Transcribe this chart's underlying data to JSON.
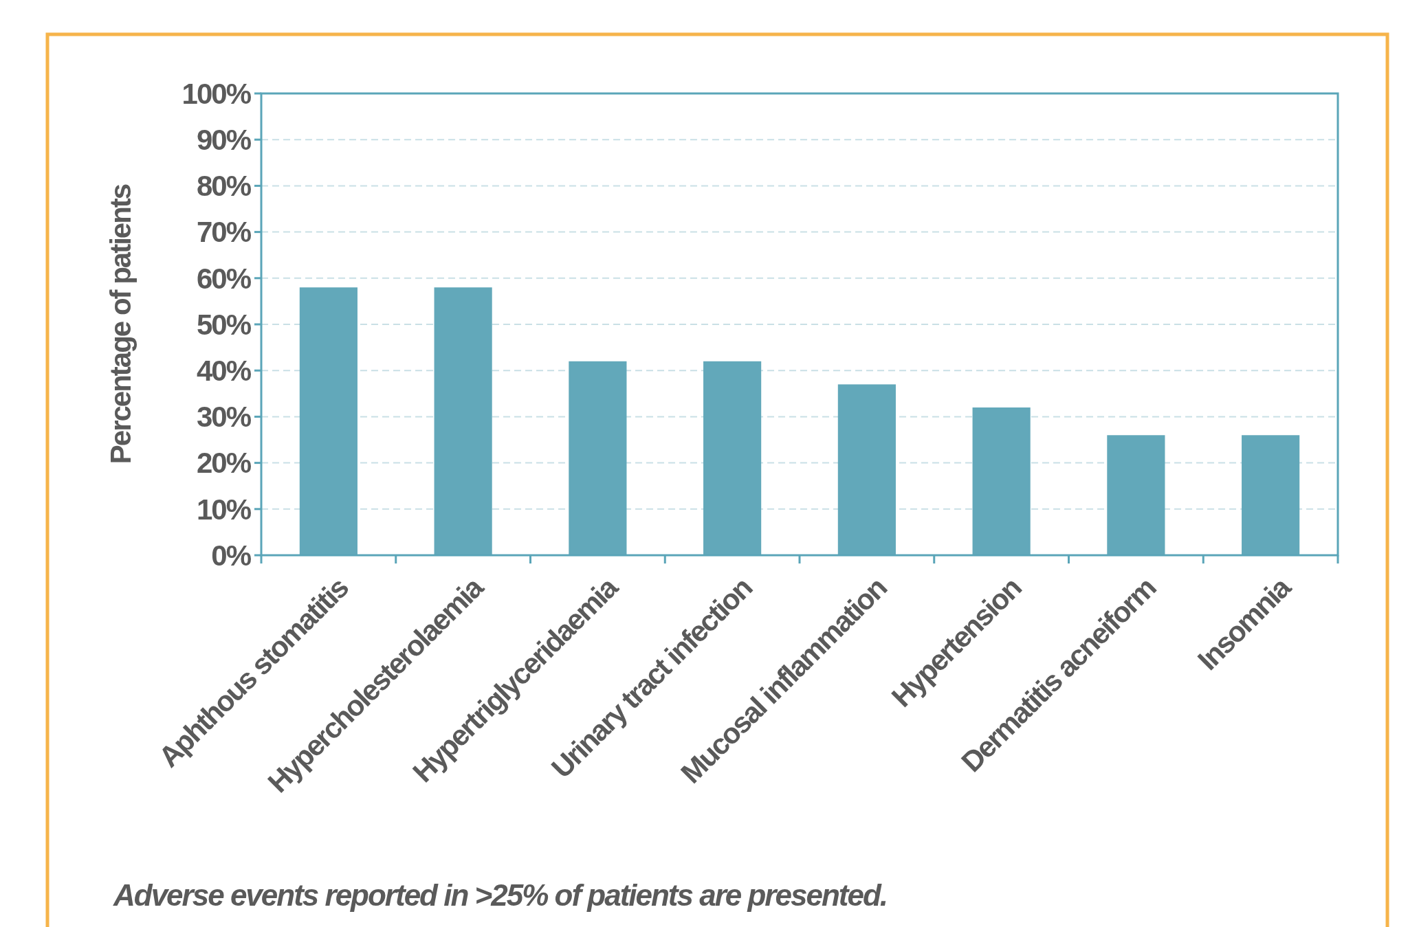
{
  "chart_data": {
    "type": "bar",
    "ylabel": "Percentage of patients",
    "categories": [
      "Aphthous stomatitis",
      "Hypercholesterolaemia",
      "Hypertriglyceridaemia",
      "Urinary tract infection",
      "Mucosal inflammation",
      "Hypertension",
      "Dermatitis acneiform",
      "Insomnia"
    ],
    "values": [
      58,
      58,
      42,
      42,
      37,
      32,
      26,
      26
    ],
    "color": "#62a8ba",
    "ylim": [
      0,
      100
    ],
    "yticks": [
      {
        "value": 0,
        "label": "0%"
      },
      {
        "value": 10,
        "label": "10%"
      },
      {
        "value": 20,
        "label": "20%"
      },
      {
        "value": 30,
        "label": "30%"
      },
      {
        "value": 40,
        "label": "40%"
      },
      {
        "value": 50,
        "label": "50%"
      },
      {
        "value": 60,
        "label": "60%"
      },
      {
        "value": 70,
        "label": "70%"
      },
      {
        "value": 80,
        "label": "80%"
      },
      {
        "value": 90,
        "label": "90%"
      },
      {
        "value": 100,
        "label": "100%"
      }
    ],
    "grid": "y",
    "annotations": [
      "Adverse events reported in >25% of patients are presented."
    ]
  }
}
